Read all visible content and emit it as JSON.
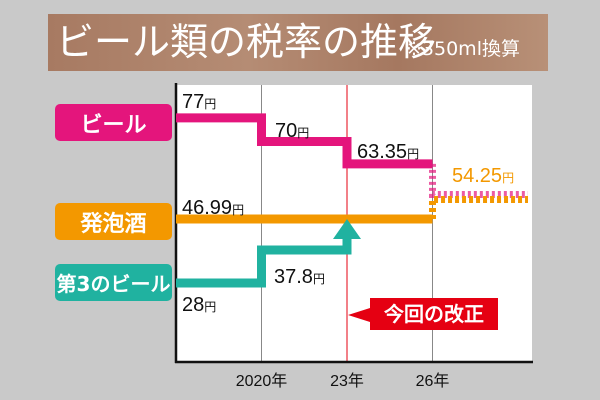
{
  "header": {
    "title": "ビール類の税率の推移",
    "note": "※350ml換算"
  },
  "chart_data": {
    "type": "line",
    "step": true,
    "title": "ビール類の税率の推移",
    "subtitle": "※350ml換算",
    "x_ticks": [
      {
        "year": 2020,
        "label": "2020年"
      },
      {
        "year": 2023,
        "label": "23年"
      },
      {
        "year": 2026,
        "label": "26年"
      }
    ],
    "unit": "円",
    "highlight": {
      "year": 2023,
      "label": "今回の改正",
      "color": "#e50012"
    },
    "series": [
      {
        "name": "ビール",
        "color": "#e4157c",
        "points": [
          {
            "x": 2017,
            "y": 77
          },
          {
            "x": 2020,
            "y": 70
          },
          {
            "x": 2023,
            "y": 63.35
          },
          {
            "x": 2026,
            "y": 54.25,
            "planned": true
          }
        ],
        "labels": [
          "77",
          "70",
          "63.35"
        ]
      },
      {
        "name": "発泡酒",
        "color": "#f39800",
        "points": [
          {
            "x": 2017,
            "y": 46.99
          },
          {
            "x": 2026,
            "y": 54.25,
            "planned": true
          }
        ],
        "labels": [
          "46.99",
          "54.25"
        ]
      },
      {
        "name": "第3のビール",
        "color": "#20b2a0",
        "points": [
          {
            "x": 2017,
            "y": 28
          },
          {
            "x": 2020,
            "y": 37.8
          },
          {
            "x": 2023,
            "y": 46.99
          }
        ],
        "labels": [
          "28",
          "37.8"
        ]
      }
    ]
  }
}
